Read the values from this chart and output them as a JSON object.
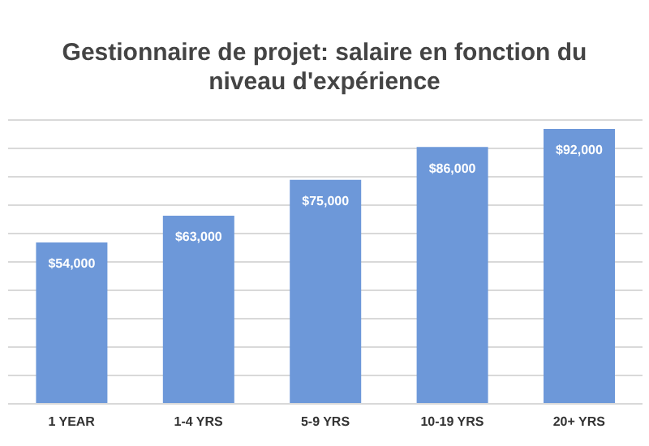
{
  "chart_data": {
    "type": "bar",
    "title": "Gestionnaire de projet: salaire en fonction du niveau d'expérience",
    "categories": [
      "1 YEAR",
      "1-4 YRS",
      "5-9 YRS",
      "10-19 YRS",
      "20+ YRS"
    ],
    "values": [
      54000,
      63000,
      75000,
      86000,
      92000
    ],
    "value_labels": [
      "$54,000",
      "$63,000",
      "$75,000",
      "$86,000",
      "$92,000"
    ],
    "color": "#6d98d9",
    "grid": "y",
    "tick_labels": "x",
    "legend": false
  }
}
